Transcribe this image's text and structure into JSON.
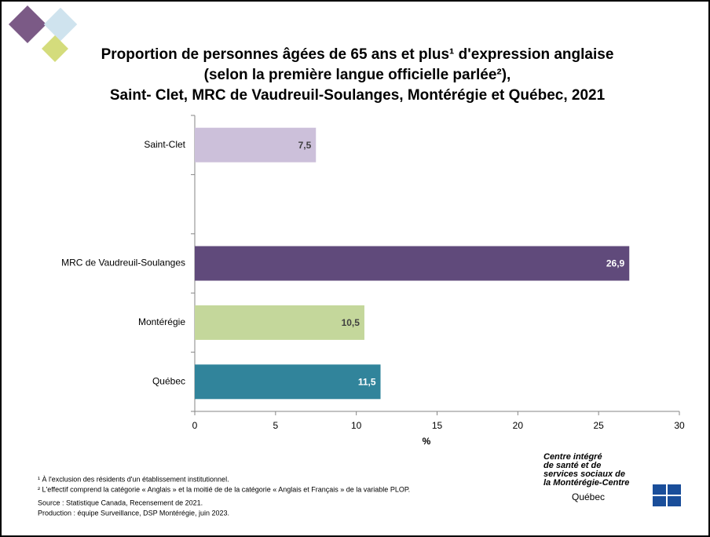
{
  "chart_data": {
    "type": "barh",
    "title": [
      "Proportion de personnes âgées de 65 ans et plus¹ d'expression anglaise",
      "(selon la première langue officielle parlée²),",
      "Saint- Clet, MRC de Vaudreuil-Soulanges, Montérégie et Québec, 2021"
    ],
    "categories": [
      "Saint-Clet",
      null,
      "MRC de Vaudreuil-Soulanges",
      "Montérégie",
      "Québec"
    ],
    "values": [
      7.5,
      null,
      26.9,
      10.5,
      11.5
    ],
    "value_labels": [
      "7,5",
      null,
      "26,9",
      "10,5",
      "11,5"
    ],
    "colors": [
      "#ccc0da",
      null,
      "#604a7b",
      "#c4d79b",
      "#31849b"
    ],
    "xlim": [
      0,
      30
    ],
    "xticks": [
      0,
      5,
      10,
      15,
      20,
      25,
      30
    ],
    "xlabel": "%",
    "footnotes": [
      "¹ À l'exclusion des résidents d'un établissement institutionnel.",
      "² L'effectif comprend la catégorie « Anglais » et la moitié de de la catégorie « Anglais et Français » de la variable PLOP."
    ],
    "source": "Source : Statistique Canada, Recensement de 2021.",
    "production": "Production : équipe Surveillance, DSP Montérégie, juin 2023.",
    "logo": {
      "lines": [
        "Centre intégré",
        "de santé et de",
        "services sociaux de",
        "la Montérégie-Centre"
      ],
      "name": "Québec"
    }
  }
}
